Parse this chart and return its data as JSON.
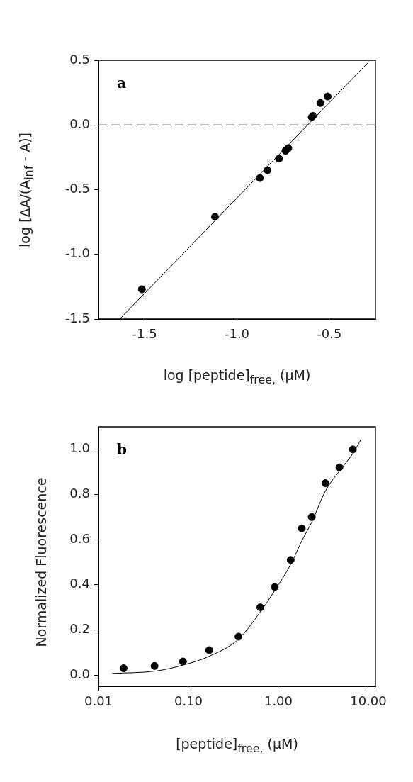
{
  "chart_data": [
    {
      "type": "scatter",
      "xlabel": "log [peptide]$_{free,}$ (µM)",
      "ylabel": "log [ΔA/(A$_{inf}$ - A)]",
      "annotations": [
        "a"
      ],
      "xlim": [
        -1.75,
        -0.25
      ],
      "ylim": [
        -1.5,
        0.5
      ],
      "xticks": [
        -1.5,
        {
          "value": -1,
          "label": "-1.0"
        },
        -0.5
      ],
      "yticks": [
        0.5,
        {
          "value": 0,
          "label": "0.0"
        },
        -0.5,
        {
          "value": -1,
          "label": "-1.0"
        },
        -1.5
      ],
      "ref_lines": [
        {
          "axis": "y",
          "value": 0,
          "line_style": "dashed",
          "color": "#000000"
        }
      ],
      "series": [
        {
          "marker": "circle",
          "color": "#000000",
          "x": [
            -1.515,
            -1.119,
            -0.876,
            -0.835,
            -0.772,
            -0.737,
            -0.722,
            -0.595,
            -0.589,
            -0.548,
            -0.509
          ],
          "values": [
            -1.27,
            -0.71,
            -0.41,
            -0.35,
            -0.26,
            -0.2,
            -0.18,
            0.06,
            0.07,
            0.17,
            0.22
          ]
        },
        {
          "type": "line",
          "marker": "none",
          "color": "#000000",
          "x": [
            -1.635,
            -0.285
          ],
          "values": [
            -1.5,
            0.49
          ]
        }
      ]
    },
    {
      "type": "scatter",
      "xlabel": "[peptide]$_{free,}$ (µM)",
      "ylabel": "Normalized Fluorescence",
      "annotations": [
        "b"
      ],
      "log": "x",
      "xlim": [
        0.01,
        12
      ],
      "ylim": [
        -0.05,
        1.1
      ],
      "xticks": [
        0.01,
        {
          "value": 0.1,
          "label": "0.10"
        },
        {
          "value": 1,
          "label": "1.00"
        },
        {
          "value": 10,
          "label": "10.00"
        }
      ],
      "yticks": [
        {
          "value": 0,
          "label": "0.0"
        },
        0.2,
        0.4,
        0.6,
        0.8,
        {
          "value": 1,
          "label": "1.0"
        }
      ],
      "series": [
        {
          "marker": "circle",
          "color": "#000000",
          "x": [
            0.019,
            0.042,
            0.087,
            0.17,
            0.36,
            0.63,
            0.91,
            1.37,
            1.82,
            2.35,
            3.33,
            4.77,
            6.73
          ],
          "values": [
            0.03,
            0.04,
            0.06,
            0.11,
            0.17,
            0.3,
            0.39,
            0.51,
            0.65,
            0.7,
            0.85,
            0.92,
            1.0
          ]
        },
        {
          "type": "line",
          "marker": "none",
          "color": "#000000",
          "x": [
            0.0142,
            0.044,
            0.087,
            0.17,
            0.36,
            0.63,
            0.91,
            1.37,
            1.82,
            2.35,
            3.33,
            4.77,
            6.73,
            8.3
          ],
          "values": [
            0.007,
            0.018,
            0.044,
            0.083,
            0.159,
            0.28,
            0.374,
            0.49,
            0.594,
            0.678,
            0.815,
            0.904,
            0.982,
            1.045
          ]
        }
      ]
    }
  ]
}
